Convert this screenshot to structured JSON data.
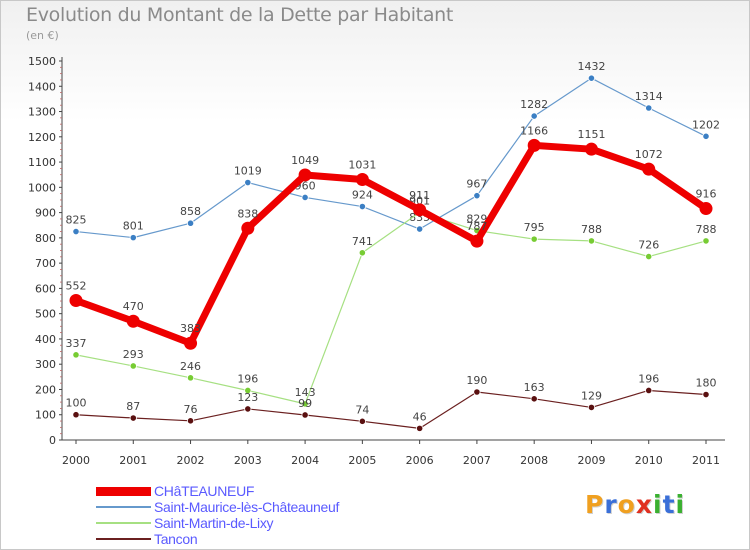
{
  "header": {
    "title": "Evolution du Montant de la Dette par Habitant",
    "unit": "(en €)"
  },
  "colors": {
    "axis": "#444444",
    "grid": "#dddddd",
    "label_text": "#444444",
    "legend_text": "#5a5aff"
  },
  "logo": {
    "letters": [
      {
        "char": "P",
        "color": "#f0a020"
      },
      {
        "char": "r",
        "color": "#3a6fd8"
      },
      {
        "char": "o",
        "color": "#f0a020"
      },
      {
        "char": "x",
        "color": "#e03020"
      },
      {
        "char": "i",
        "color": "#3ab030"
      },
      {
        "char": "t",
        "color": "#3a6fd8"
      },
      {
        "char": "i",
        "color": "#3ab030"
      }
    ]
  },
  "chart_data": {
    "type": "line",
    "title": "Evolution du Montant de la Dette par Habitant",
    "subtitle": "(en €)",
    "categories": [
      "2000",
      "2001",
      "2002",
      "2003",
      "2004",
      "2005",
      "2006",
      "2007",
      "2008",
      "2009",
      "2010",
      "2011"
    ],
    "ylim": [
      0,
      1500
    ],
    "yticks": [
      0,
      100,
      200,
      300,
      400,
      500,
      600,
      700,
      800,
      900,
      1000,
      1100,
      1200,
      1300,
      1400,
      1500
    ],
    "grid": false,
    "legend_position": "bottom-left",
    "series": [
      {
        "name": "Saint-Maurice-lès-Châteauneuf",
        "color": "#6699cc",
        "width": 1.2,
        "marker": 3.2,
        "marker_color": "#3b7fc4",
        "values": [
          825,
          801,
          858,
          1019,
          960,
          924,
          835,
          967,
          1282,
          1432,
          1314,
          1202
        ],
        "labels": [
          "825",
          "801",
          "858",
          "1019",
          "960",
          "924",
          "835",
          "967",
          "1282",
          "1432",
          "1314",
          "1202"
        ]
      },
      {
        "name": "Saint-Martin-de-Lixy",
        "color": "#a6e082",
        "width": 1.2,
        "marker": 3.2,
        "marker_color": "#77cc33",
        "values": [
          337,
          293,
          246,
          196,
          143,
          741,
          901,
          829,
          795,
          788,
          726,
          788
        ],
        "labels": [
          "337",
          "293",
          "246",
          "196",
          "143",
          "741",
          "901",
          "829",
          "795",
          "788",
          "726",
          "788"
        ]
      },
      {
        "name": "Tancon",
        "color": "#6b2020",
        "width": 1.2,
        "marker": 3.2,
        "marker_color": "#5a1010",
        "values": [
          100,
          87,
          76,
          123,
          99,
          74,
          46,
          190,
          163,
          129,
          196,
          180
        ],
        "labels": [
          "100",
          "87",
          "76",
          "123",
          "99",
          "74",
          "46",
          "190",
          "163",
          "129",
          "196",
          "180"
        ]
      },
      {
        "name": "CHâTEAUNEUF",
        "color": "#ee0000",
        "width": 7,
        "marker": 6.5,
        "marker_color": "#ee0000",
        "values": [
          552,
          470,
          383,
          838,
          1049,
          1031,
          911,
          787,
          1166,
          1151,
          1072,
          916
        ],
        "labels": [
          "552",
          "470",
          "383",
          "838",
          "1049",
          "1031",
          "911",
          "787",
          "1166",
          "1151",
          "1072",
          "916"
        ]
      }
    ],
    "legend": [
      {
        "name": "CHâTEAUNEUF",
        "color": "#ee0000",
        "width": 9
      },
      {
        "name": "Saint-Maurice-lès-Châteauneuf",
        "color": "#6699cc",
        "width": 2
      },
      {
        "name": "Saint-Martin-de-Lixy",
        "color": "#a6e082",
        "width": 2
      },
      {
        "name": "Tancon",
        "color": "#6b2020",
        "width": 2
      }
    ]
  }
}
